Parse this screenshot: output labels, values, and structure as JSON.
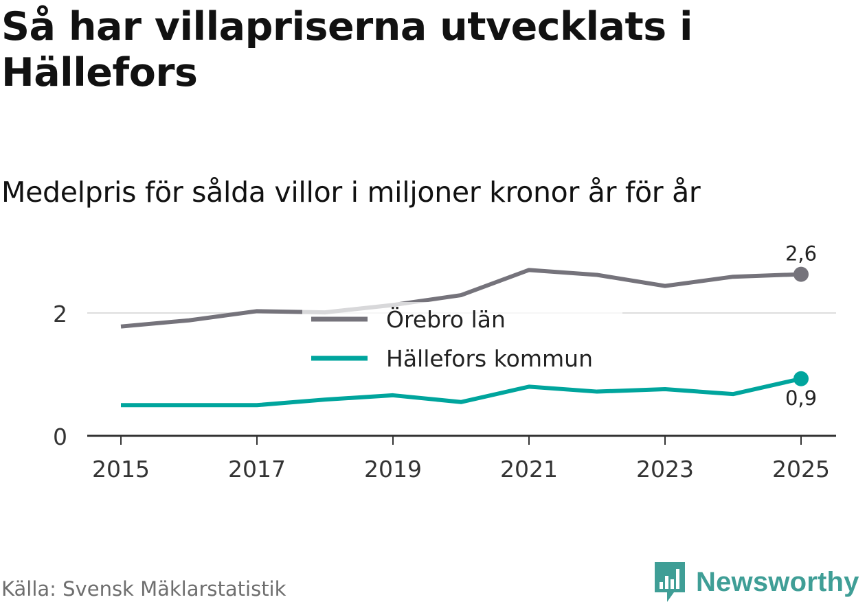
{
  "title": "Så har villapriserna utvecklats i Hällefors",
  "subtitle": "Medelpris för sålda villor i miljoner kronor år för år",
  "source": "Källa: Svensk Mäklarstatistik",
  "brand": {
    "name": "Newsworthy",
    "icon": "bar-chart-speech-bubble-icon",
    "color": "#3f9e96"
  },
  "chart_data": {
    "type": "line",
    "title": "Så har villapriserna utvecklats i Hällefors",
    "subtitle": "Medelpris för sålda villor i miljoner kronor år för år",
    "xlabel": "",
    "ylabel": "",
    "x": [
      2015,
      2016,
      2017,
      2018,
      2019,
      2020,
      2021,
      2022,
      2023,
      2024,
      2025
    ],
    "xticks": [
      "2015",
      "2017",
      "2019",
      "2021",
      "2023",
      "2025"
    ],
    "xlim": [
      2015,
      2025
    ],
    "yticks": [
      "0",
      "2"
    ],
    "ylim": [
      0,
      2.6
    ],
    "grid": "horizontal",
    "legend_position": "center",
    "series": [
      {
        "name": "Örebro län",
        "color": "#75737b",
        "values": [
          1.78,
          1.88,
          2.03,
          2.01,
          2.13,
          2.29,
          2.7,
          2.62,
          2.44,
          2.59,
          2.63
        ],
        "end_label": "2,6",
        "end_label_position": "above"
      },
      {
        "name": "Hällefors kommun",
        "color": "#00a59d",
        "values": [
          0.5,
          0.5,
          0.5,
          0.59,
          0.66,
          0.55,
          0.8,
          0.72,
          0.76,
          0.68,
          0.93
        ],
        "end_label": "0,9",
        "end_label_position": "below"
      }
    ]
  }
}
